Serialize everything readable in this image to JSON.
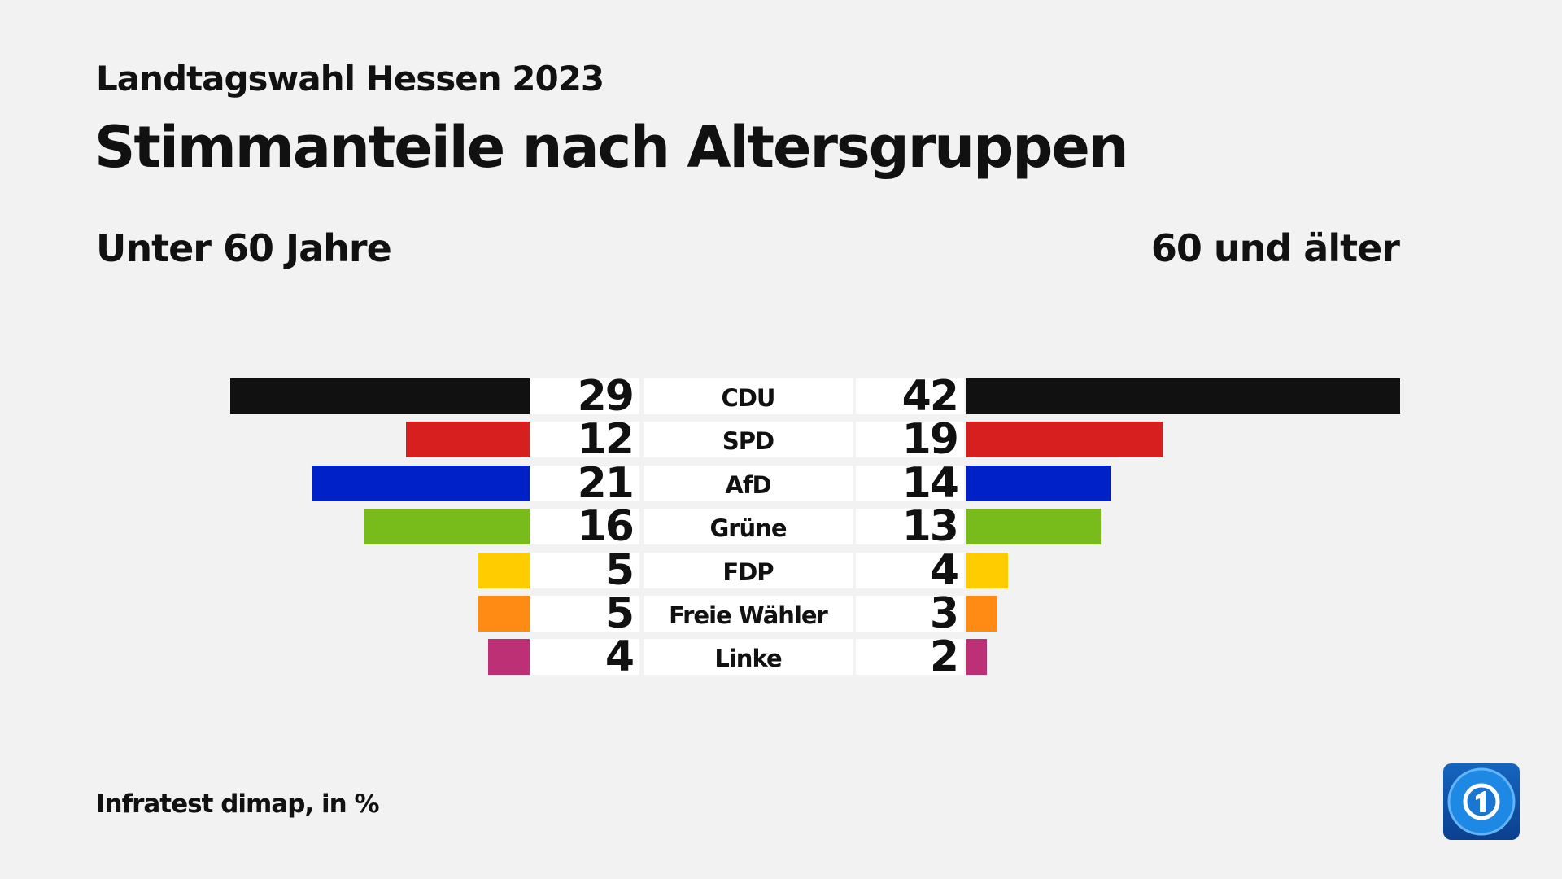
{
  "header": {
    "supertitle": "Landtagswahl Hessen 2023",
    "title": "Stimmanteile nach Altersgruppen"
  },
  "footer": {
    "source": "Infratest dimap, in %"
  },
  "logo": {
    "name": "tagesschau-logo",
    "text": "1"
  },
  "chart_data": {
    "type": "bar",
    "orientation": "horizontal-butterfly",
    "title": "Stimmanteile nach Altersgruppen",
    "unit": "%",
    "categories": [
      "CDU",
      "SPD",
      "AfD",
      "Grüne",
      "FDP",
      "Freie Wähler",
      "Linke"
    ],
    "colors": [
      "#111111",
      "#d71f1f",
      "#0021c8",
      "#78bc1b",
      "#ffcc00",
      "#ff8a14",
      "#bd3075"
    ],
    "series": [
      {
        "name": "Unter 60 Jahre",
        "side": "left",
        "values": [
          29,
          12,
          21,
          16,
          5,
          5,
          4
        ]
      },
      {
        "name": "60 und älter",
        "side": "right",
        "values": [
          42,
          19,
          14,
          13,
          4,
          3,
          2
        ]
      }
    ]
  }
}
